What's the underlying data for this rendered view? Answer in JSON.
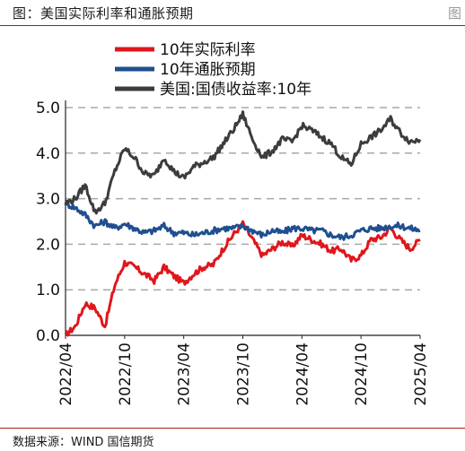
{
  "header": {
    "title": "图：美国实际利率和通胀预期",
    "corner_mark": "图"
  },
  "footer": {
    "source": "数据来源：WIND 国信期货"
  },
  "colors": {
    "real_rate": "#e0161b",
    "inflation": "#1f4f8f",
    "nominal": "#3c3c3c",
    "grid": "#a8a8a8",
    "rule": "#b01818"
  },
  "chart_data": {
    "type": "line",
    "xlabel": "",
    "ylabel": "",
    "ylim": [
      0,
      5
    ],
    "yticks": [
      "0.0",
      "1.0",
      "2.0",
      "3.0",
      "4.0",
      "5.0"
    ],
    "xticks": [
      "2022/04",
      "2022/10",
      "2023/04",
      "2023/10",
      "2024/04",
      "2024/10",
      "2025/04"
    ],
    "grid": "horizontal dashed",
    "legend_position": "top",
    "x": [
      "2022-04",
      "2022-05",
      "2022-06",
      "2022-07",
      "2022-08",
      "2022-09",
      "2022-10",
      "2022-11",
      "2022-12",
      "2023-01",
      "2023-02",
      "2023-03",
      "2023-04",
      "2023-05",
      "2023-06",
      "2023-07",
      "2023-08",
      "2023-09",
      "2023-10",
      "2023-11",
      "2023-12",
      "2024-01",
      "2024-02",
      "2024-03",
      "2024-04",
      "2024-05",
      "2024-06",
      "2024-07",
      "2024-08",
      "2024-09",
      "2024-10",
      "2024-11",
      "2024-12",
      "2025-01",
      "2025-02",
      "2025-03",
      "2025-04"
    ],
    "series": [
      {
        "name": "10年实际利率",
        "color": "#e0161b",
        "values": [
          0.0,
          0.2,
          0.7,
          0.6,
          0.2,
          1.1,
          1.6,
          1.5,
          1.35,
          1.2,
          1.5,
          1.3,
          1.15,
          1.35,
          1.5,
          1.55,
          1.9,
          2.2,
          2.45,
          2.1,
          1.75,
          1.9,
          2.05,
          1.95,
          2.2,
          2.1,
          2.0,
          1.85,
          1.9,
          1.65,
          1.75,
          2.1,
          2.15,
          2.35,
          2.1,
          1.9,
          2.1
        ]
      },
      {
        "name": "10年通胀预期",
        "color": "#1f4f8f",
        "values": [
          2.9,
          2.8,
          2.65,
          2.4,
          2.5,
          2.35,
          2.45,
          2.35,
          2.25,
          2.3,
          2.4,
          2.25,
          2.25,
          2.2,
          2.25,
          2.3,
          2.35,
          2.35,
          2.4,
          2.3,
          2.2,
          2.3,
          2.25,
          2.35,
          2.35,
          2.3,
          2.3,
          2.2,
          2.15,
          2.2,
          2.3,
          2.35,
          2.35,
          2.4,
          2.4,
          2.35,
          2.3
        ]
      },
      {
        "name": "美国:国债收益率:10年",
        "color": "#3c3c3c",
        "values": [
          2.9,
          3.0,
          3.3,
          2.7,
          2.9,
          3.6,
          4.1,
          3.9,
          3.55,
          3.5,
          3.9,
          3.6,
          3.45,
          3.7,
          3.8,
          3.9,
          4.2,
          4.5,
          4.85,
          4.3,
          3.9,
          4.05,
          4.3,
          4.25,
          4.6,
          4.5,
          4.35,
          4.2,
          3.9,
          3.75,
          4.2,
          4.35,
          4.5,
          4.75,
          4.45,
          4.25,
          4.3
        ]
      }
    ]
  }
}
